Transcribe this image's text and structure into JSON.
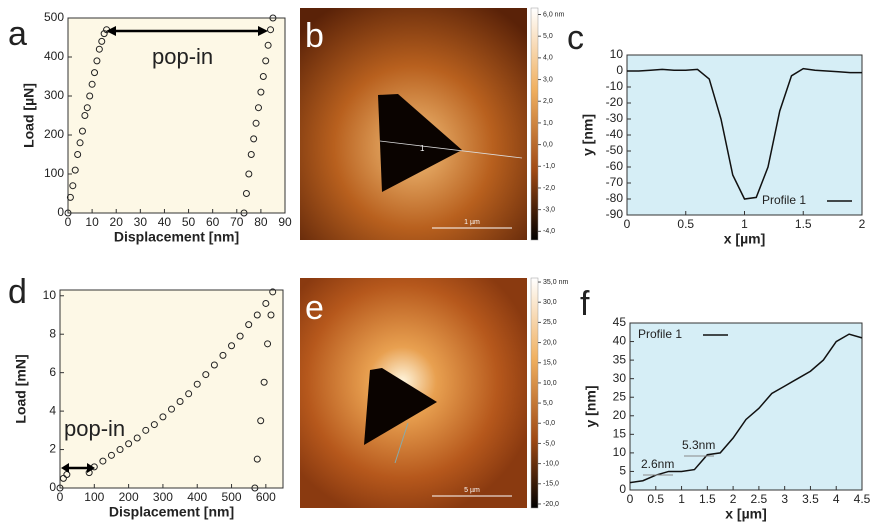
{
  "chart_data": [
    {
      "type": "scatter",
      "panel_label": "a",
      "xlabel": "Displacement [nm]",
      "ylabel": "Load [µN]",
      "background": "#fdf8e6",
      "xlim": [
        0,
        90
      ],
      "xticks": [
        0,
        10,
        20,
        30,
        40,
        50,
        60,
        70,
        80,
        90
      ],
      "ylim": [
        0,
        500
      ],
      "yticks": [
        0,
        100,
        200,
        300,
        400,
        500
      ],
      "annotations": [
        "pop-in"
      ],
      "series": [
        {
          "color": "#222222",
          "x": [
            0,
            1,
            2,
            3,
            4,
            5,
            6,
            7,
            8,
            9,
            10,
            11,
            12,
            13,
            14,
            15,
            16,
            85,
            84,
            83,
            82,
            81,
            80,
            79,
            78,
            77,
            76,
            75,
            74,
            73
          ],
          "values": [
            0,
            40,
            70,
            110,
            150,
            180,
            210,
            250,
            270,
            300,
            330,
            360,
            390,
            420,
            440,
            460,
            470,
            500,
            470,
            430,
            390,
            350,
            310,
            270,
            230,
            190,
            150,
            100,
            50,
            0
          ]
        }
      ]
    },
    {
      "type": "image",
      "panel_label": "b",
      "clim": [
        -4.4,
        6.3
      ],
      "cticks": [
        {
          "value": 6,
          "label": "6,0 nm"
        },
        {
          "value": 5,
          "label": "5,0"
        },
        {
          "value": 4,
          "label": "4,0"
        },
        {
          "value": 3,
          "label": "3,0"
        },
        {
          "value": 2,
          "label": "2,0"
        },
        {
          "value": 1,
          "label": "1,0"
        },
        {
          "value": 0,
          "label": "0,0"
        },
        {
          "value": -1,
          "label": "-1,0"
        },
        {
          "value": -2,
          "label": "-2,0"
        },
        {
          "value": -3,
          "label": "-3,0"
        },
        {
          "value": -4,
          "label": "-4,0"
        }
      ],
      "scale_bar": "1 µm",
      "profile_label": "1"
    },
    {
      "type": "line",
      "panel_label": "c",
      "xlabel": "x [µm]",
      "ylabel": "y [nm]",
      "background": "#d6eef6",
      "legend": "lower right",
      "xlim": [
        0,
        2
      ],
      "xticks": [
        0,
        0.5,
        1,
        1.5,
        2
      ],
      "ylim": [
        -90,
        10
      ],
      "yticks": [
        -90,
        -80,
        -70,
        -60,
        -50,
        -40,
        -30,
        -20,
        -10,
        0,
        10
      ],
      "series": [
        {
          "name": "Profile 1",
          "color": "#111111",
          "x": [
            0,
            0.1,
            0.2,
            0.3,
            0.4,
            0.5,
            0.6,
            0.7,
            0.8,
            0.9,
            1,
            1.1,
            1.2,
            1.3,
            1.4,
            1.5,
            1.6,
            1.7,
            1.8,
            1.9,
            2
          ],
          "values": [
            0,
            0,
            0.5,
            1,
            0.5,
            0.5,
            1,
            -5,
            -30,
            -65,
            -80,
            -79,
            -60,
            -25,
            -3,
            1.5,
            0.5,
            0,
            -0.5,
            -1,
            -1
          ]
        }
      ]
    },
    {
      "type": "scatter",
      "panel_label": "d",
      "xlabel": "Displacement [nm]",
      "ylabel": "Load [mN]",
      "background": "#fdf8e6",
      "xlim": [
        0,
        650
      ],
      "xticks": [
        0,
        100,
        200,
        300,
        400,
        500,
        600
      ],
      "ylim": [
        0,
        10.3
      ],
      "yticks": [
        0,
        2,
        4,
        6,
        8,
        10
      ],
      "annotations": [
        "pop-in"
      ],
      "series": [
        {
          "color": "#222222",
          "x": [
            0,
            10,
            20,
            85,
            100,
            125,
            150,
            175,
            200,
            225,
            250,
            275,
            300,
            325,
            350,
            375,
            400,
            425,
            450,
            475,
            500,
            525,
            550,
            575,
            600,
            620,
            615,
            605,
            595,
            585,
            575,
            568
          ],
          "values": [
            0,
            0.5,
            0.7,
            0.8,
            1.1,
            1.4,
            1.7,
            2.0,
            2.3,
            2.6,
            3.0,
            3.3,
            3.7,
            4.1,
            4.5,
            4.9,
            5.4,
            5.9,
            6.4,
            6.9,
            7.4,
            7.9,
            8.5,
            9.0,
            9.6,
            10.2,
            9,
            7.5,
            5.5,
            3.5,
            1.5,
            0
          ]
        }
      ]
    },
    {
      "type": "image",
      "panel_label": "e",
      "clim": [
        -21,
        36
      ],
      "cticks": [
        {
          "value": 35,
          "label": "35,0 nm"
        },
        {
          "value": 30,
          "label": "30,0"
        },
        {
          "value": 25,
          "label": "25,0"
        },
        {
          "value": 20,
          "label": "20,0"
        },
        {
          "value": 15,
          "label": "15,0"
        },
        {
          "value": 10,
          "label": "10,0"
        },
        {
          "value": 5,
          "label": "5,0"
        },
        {
          "value": 0,
          "label": "-0,0"
        },
        {
          "value": -5,
          "label": "-5,0"
        },
        {
          "value": -10,
          "label": "-10,0"
        },
        {
          "value": -15,
          "label": "-15,0"
        },
        {
          "value": -20,
          "label": "-20,0"
        }
      ],
      "scale_bar": "5 µm"
    },
    {
      "type": "line",
      "panel_label": "f",
      "xlabel": "x [µm]",
      "ylabel": "y [nm]",
      "background": "#d6eef6",
      "legend": "upper left",
      "xlim": [
        0,
        4.5
      ],
      "xticks": [
        0,
        0.5,
        1,
        1.5,
        2,
        2.5,
        3,
        3.5,
        4,
        4.5
      ],
      "ylim": [
        0,
        45
      ],
      "yticks": [
        0,
        5,
        10,
        15,
        20,
        25,
        30,
        35,
        40,
        45
      ],
      "annotations": [
        "2.6nm",
        "5.3nm"
      ],
      "series": [
        {
          "name": "Profile 1",
          "color": "#111111",
          "x": [
            0,
            0.25,
            0.5,
            0.75,
            1,
            1.25,
            1.5,
            1.75,
            2,
            2.25,
            2.5,
            2.75,
            3,
            3.25,
            3.5,
            3.75,
            4,
            4.25,
            4.5
          ],
          "values": [
            2,
            2.5,
            4,
            5,
            5,
            5.5,
            9.5,
            10,
            14,
            19,
            22,
            26,
            28,
            30,
            32,
            35,
            40,
            42,
            41
          ]
        }
      ]
    }
  ]
}
